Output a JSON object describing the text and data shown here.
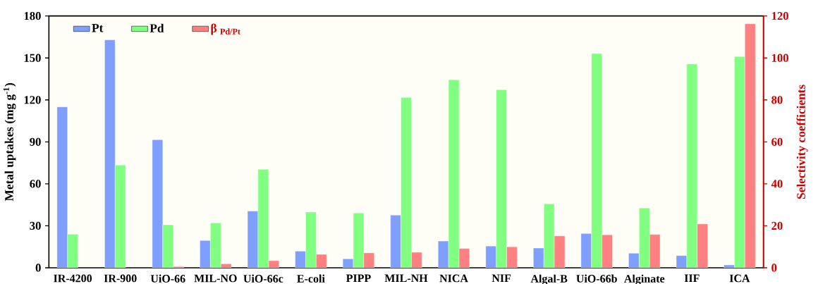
{
  "chart_data": {
    "type": "bar",
    "ylabel": "Metal uptakes (mg g$^{-1}$)",
    "y2label": "Selectivity coefficients",
    "categories": [
      "IR-4200",
      "IR-900",
      "UiO-66",
      "MIL-NO",
      "UiO-66c",
      "E-coli",
      "PIPP",
      "MIL-NH",
      "NICA",
      "NIF",
      "Algal-B",
      "UiO-66b",
      "Alginate",
      "IIF",
      "ICA"
    ],
    "series": [
      {
        "name": "Pt",
        "color": "#7f9fff",
        "values": [
          115,
          162.9,
          91.5,
          19.5,
          40.5,
          11.9,
          6.4,
          37.6,
          19.1,
          15.5,
          14.1,
          24.5,
          10.4,
          8.7,
          2.0
        ]
      },
      {
        "name": "Pd",
        "color": "#80ff80",
        "values": [
          24.0,
          73.4,
          30.7,
          32.1,
          70.4,
          39.8,
          39.1,
          121.8,
          134.4,
          127.3,
          45.7,
          153.1,
          42.7,
          145.7,
          151.0
        ]
      },
      {
        "name": "β $_{Pd/Pt}$",
        "color": "#ff8080",
        "axis": "y2",
        "values": [
          null,
          null,
          0.6,
          1.9,
          3.4,
          6.4,
          7.1,
          7.4,
          9.2,
          10.0,
          15.2,
          15.7,
          15.9,
          20.9,
          116.3
        ]
      }
    ],
    "ylim": [
      0,
      180
    ],
    "yticks": [
      0,
      30,
      60,
      90,
      120,
      150,
      180
    ],
    "y2lim": [
      0,
      120
    ],
    "y2ticks": [
      0,
      20,
      40,
      60,
      80,
      100,
      120
    ],
    "legend": "top left",
    "grid": false
  }
}
